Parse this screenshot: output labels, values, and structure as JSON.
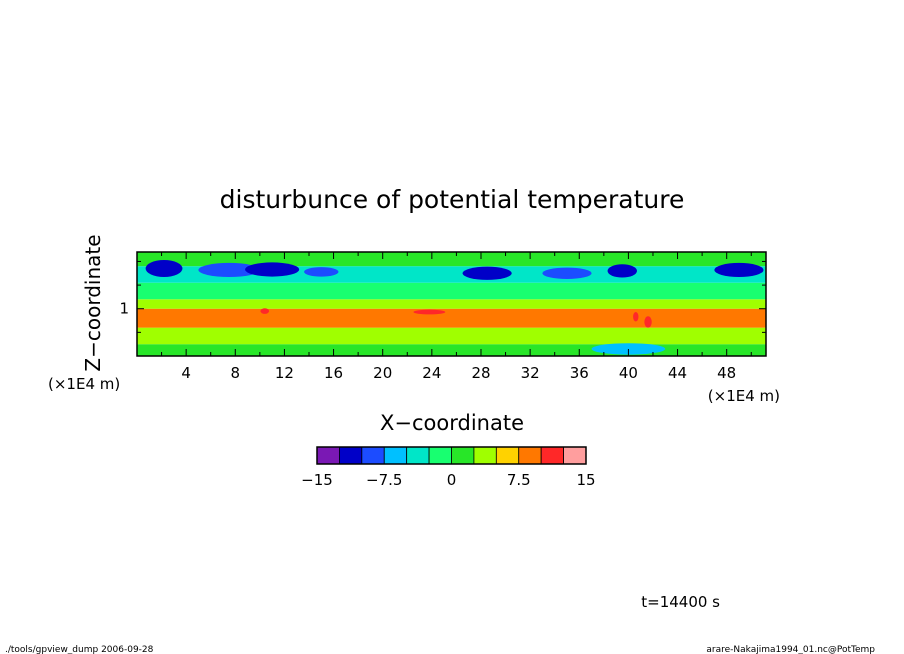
{
  "chart_data": {
    "type": "heatmap",
    "title": "disturbunce of potential temperature",
    "xlabel": "X−coordinate",
    "ylabel": "Z−coordinate",
    "xunit": "(×1E4 m)",
    "yunit": "(×1E4 m)",
    "xlim": [
      0,
      51.2
    ],
    "ylim": [
      0,
      2.2
    ],
    "xticks": [
      4,
      8,
      12,
      16,
      20,
      24,
      28,
      32,
      36,
      40,
      44,
      48
    ],
    "yticks": [
      1
    ],
    "colorbar": {
      "levels": [
        -15,
        -12.5,
        -10,
        -7.5,
        -5,
        -2.5,
        0,
        2.5,
        5,
        7.5,
        10,
        12.5,
        15
      ],
      "colors": [
        "#7a18b4",
        "#0000c8",
        "#1c4cff",
        "#00c0ff",
        "#00e6c8",
        "#18ff70",
        "#28e628",
        "#a0ff00",
        "#ffd200",
        "#ff7800",
        "#ff2828",
        "#ff9e9e"
      ],
      "tick_labels": [
        "−15",
        "−7.5",
        "0",
        "7.5",
        "15"
      ]
    },
    "bands": [
      {
        "z": [
          0.0,
          0.25
        ],
        "value": 1
      },
      {
        "z": [
          0.25,
          0.6
        ],
        "value": 4
      },
      {
        "z": [
          0.6,
          1.0
        ],
        "value": 8.5
      },
      {
        "z": [
          1.0,
          1.2
        ],
        "value": 3
      },
      {
        "z": [
          1.2,
          1.55
        ],
        "value": -1
      },
      {
        "z": [
          1.55,
          1.9
        ],
        "value": -4
      },
      {
        "z": [
          1.9,
          2.2
        ],
        "value": 2
      }
    ],
    "features": [
      {
        "x": 2.2,
        "z": 1.85,
        "dx": 1.5,
        "dz": 0.18,
        "value": -12
      },
      {
        "x": 7.5,
        "z": 1.82,
        "dx": 2.5,
        "dz": 0.15,
        "value": -10
      },
      {
        "x": 11.0,
        "z": 1.83,
        "dx": 2.2,
        "dz": 0.15,
        "value": -12
      },
      {
        "x": 15.0,
        "z": 1.78,
        "dx": 1.4,
        "dz": 0.1,
        "value": -10
      },
      {
        "x": 28.5,
        "z": 1.75,
        "dx": 2.0,
        "dz": 0.14,
        "value": -12
      },
      {
        "x": 35.0,
        "z": 1.75,
        "dx": 2.0,
        "dz": 0.12,
        "value": -10
      },
      {
        "x": 39.5,
        "z": 1.8,
        "dx": 1.2,
        "dz": 0.14,
        "value": -12
      },
      {
        "x": 49.0,
        "z": 1.82,
        "dx": 2.0,
        "dz": 0.15,
        "value": -12
      },
      {
        "x": 10.4,
        "z": 0.95,
        "dx": 0.35,
        "dz": 0.06,
        "value": 12
      },
      {
        "x": 23.8,
        "z": 0.93,
        "dx": 1.3,
        "dz": 0.05,
        "value": 10
      },
      {
        "x": 40.6,
        "z": 0.83,
        "dx": 0.22,
        "dz": 0.1,
        "value": 12
      },
      {
        "x": 41.6,
        "z": 0.72,
        "dx": 0.3,
        "dz": 0.12,
        "value": 12
      },
      {
        "x": 40.0,
        "z": 0.15,
        "dx": 3.0,
        "dz": 0.12,
        "value": -6
      }
    ]
  },
  "annotations": {
    "time": "t=14400 s",
    "footer_left": "./tools/gpview_dump  2006-09-28",
    "footer_right": "arare-Nakajima1994_01.nc@PotTemp"
  }
}
